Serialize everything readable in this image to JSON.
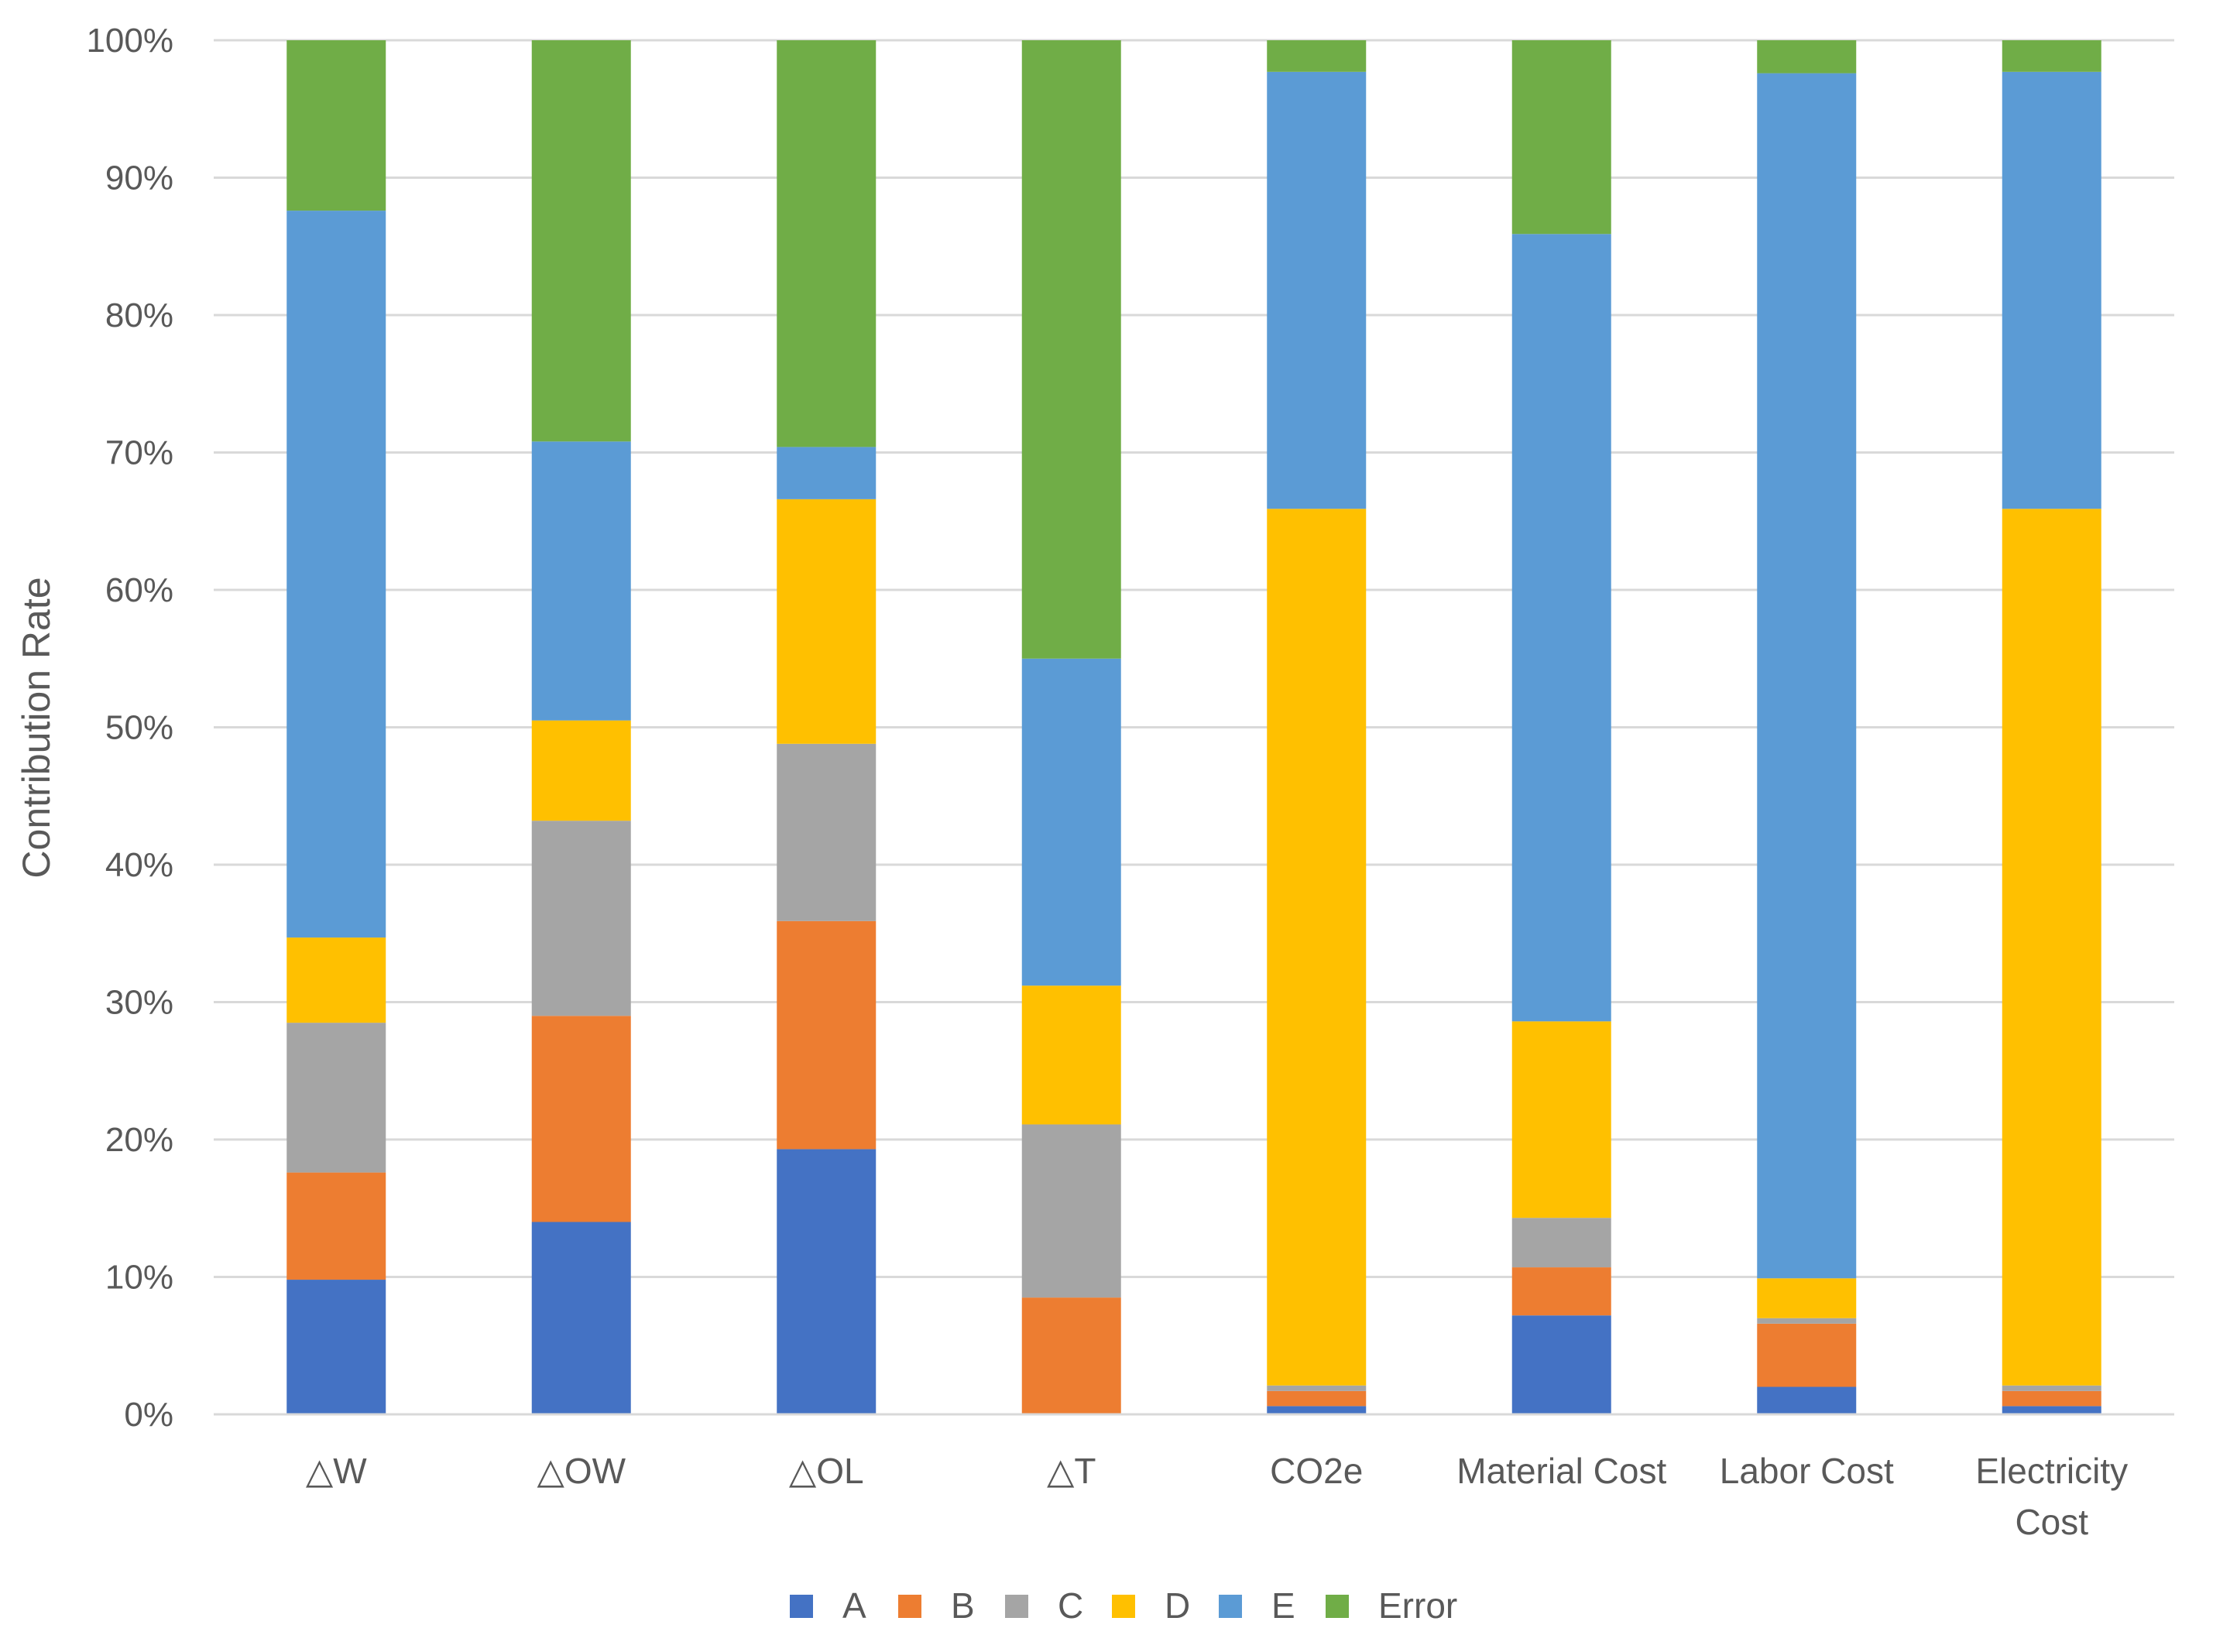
{
  "chart_data": {
    "type": "bar",
    "stacked": true,
    "normalized": true,
    "title": "",
    "xlabel": "",
    "ylabel": "Contribution Rate",
    "ylim": [
      0,
      100
    ],
    "yticks": [
      "0%",
      "10%",
      "20%",
      "30%",
      "40%",
      "50%",
      "60%",
      "70%",
      "80%",
      "90%",
      "100%"
    ],
    "categories": [
      [
        "△W"
      ],
      [
        "△OW"
      ],
      [
        "△OL"
      ],
      [
        "△T"
      ],
      [
        "CO2e"
      ],
      [
        "Material Cost"
      ],
      [
        "Labor Cost"
      ],
      [
        "Electricity",
        "Cost"
      ]
    ],
    "series": [
      {
        "name": "A",
        "color": "#4472C4",
        "values": [
          9.8,
          14.0,
          19.3,
          0.0,
          0.6,
          7.2,
          2.0,
          0.6
        ]
      },
      {
        "name": "B",
        "color": "#ED7D31",
        "values": [
          7.8,
          15.0,
          16.6,
          8.5,
          1.1,
          3.5,
          4.6,
          1.1
        ]
      },
      {
        "name": "C",
        "color": "#A5A5A5",
        "values": [
          10.9,
          14.2,
          12.9,
          12.6,
          0.4,
          3.6,
          0.4,
          0.4
        ]
      },
      {
        "name": "D",
        "color": "#FFC000",
        "values": [
          6.2,
          7.3,
          17.8,
          10.1,
          63.8,
          14.3,
          2.9,
          63.8
        ]
      },
      {
        "name": "E",
        "color": "#5B9BD5",
        "values": [
          52.9,
          20.3,
          3.8,
          23.8,
          31.8,
          57.3,
          87.7,
          31.8
        ]
      },
      {
        "name": "Error",
        "color": "#70AD47",
        "values": [
          12.4,
          29.2,
          29.6,
          45.0,
          2.3,
          14.1,
          2.4,
          2.3
        ]
      }
    ],
    "gridlines": true,
    "legend_position": "bottom"
  }
}
